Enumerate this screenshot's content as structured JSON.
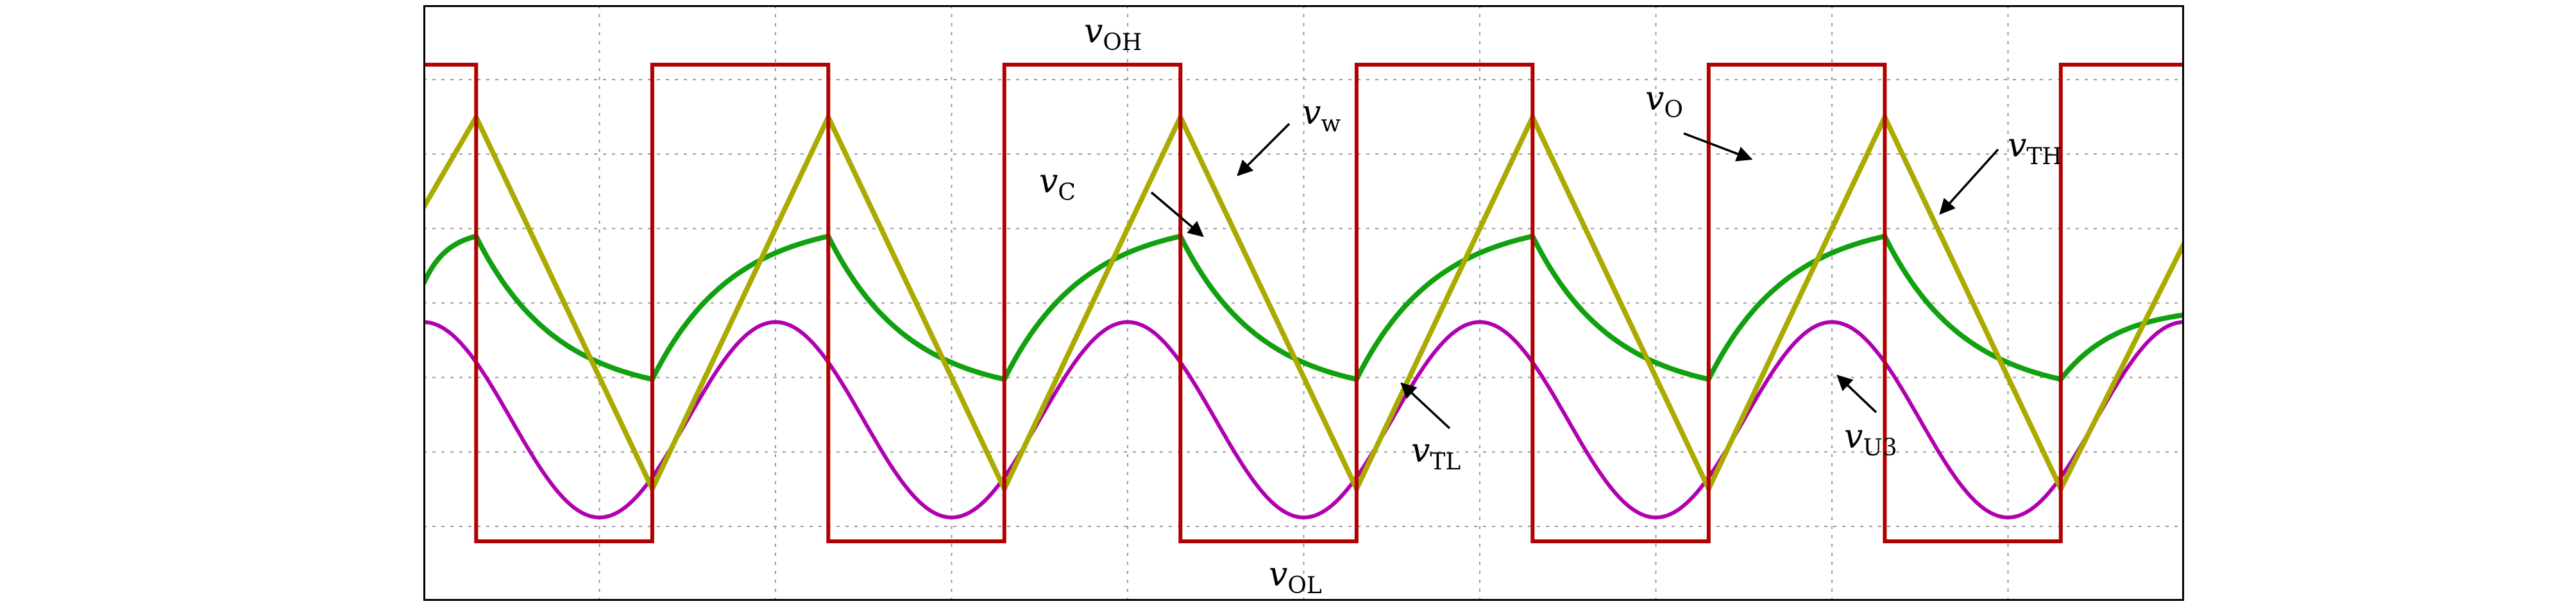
{
  "chart_data": {
    "type": "line",
    "title": "",
    "xlabel": "",
    "ylabel": "",
    "xlim": [
      0,
      5
    ],
    "ylim": [
      -1.25,
      1.25
    ],
    "grid": true,
    "colors": {
      "vO": "#b00000",
      "vW": "#aaaa00",
      "vC": "#10a010",
      "vU3": "#b000b0",
      "grid": "#9a9a9a",
      "frame": "#000000"
    },
    "series": [
      {
        "key": "vO",
        "x": [
          0,
          0.15,
          0.15,
          0.65,
          0.65,
          1.15,
          1.15,
          1.65,
          1.65,
          2.15,
          2.15,
          2.65,
          2.65,
          3.15,
          3.15,
          3.65,
          3.65,
          4.15,
          4.15,
          4.65,
          4.65,
          5.0
        ],
        "y": [
          1,
          1,
          -1,
          -1,
          1,
          1,
          -1,
          -1,
          1,
          1,
          -1,
          -1,
          1,
          1,
          -1,
          -1,
          1,
          1,
          -1,
          -1,
          1,
          1
        ]
      },
      {
        "key": "vW",
        "x": [
          0,
          0.15,
          0.65,
          1.15,
          1.65,
          2.15,
          2.65,
          3.15,
          3.65,
          4.15,
          4.65,
          5.0
        ],
        "y": [
          0.4,
          0.78,
          -0.78,
          0.78,
          -0.78,
          0.78,
          -0.78,
          0.78,
          -0.78,
          0.78,
          -0.78,
          0.25
        ]
      },
      {
        "key": "vC",
        "x": [
          0,
          0.15,
          0.65,
          1.15,
          1.65,
          2.15,
          2.65,
          3.15,
          3.65,
          4.15,
          4.65,
          5.0
        ],
        "y": [
          0.08,
          0.28,
          -0.32,
          0.28,
          -0.32,
          0.28,
          -0.32,
          0.28,
          -0.32,
          0.28,
          -0.32,
          -0.05
        ]
      },
      {
        "key": "vU3",
        "x": [
          0,
          0.5,
          1,
          1.5,
          2,
          2.5,
          3,
          3.5,
          4,
          4.5,
          5
        ],
        "y": [
          -0.08,
          -0.9,
          -0.08,
          -0.9,
          -0.08,
          -0.9,
          -0.08,
          -0.9,
          -0.08,
          -0.9,
          -0.08
        ]
      }
    ],
    "annotations": {
      "vOH": {
        "main": "v",
        "sub": "OH"
      },
      "vOL": {
        "main": "v",
        "sub": "OL"
      },
      "vW": {
        "main": "v",
        "sub": "w"
      },
      "vC": {
        "main": "v",
        "sub": "C"
      },
      "vO": {
        "main": "v",
        "sub": "O"
      },
      "vTH": {
        "main": "v",
        "sub": "TH"
      },
      "vTL": {
        "main": "v",
        "sub": "TL"
      },
      "vU3": {
        "main": "v",
        "sub": "U3"
      }
    }
  }
}
